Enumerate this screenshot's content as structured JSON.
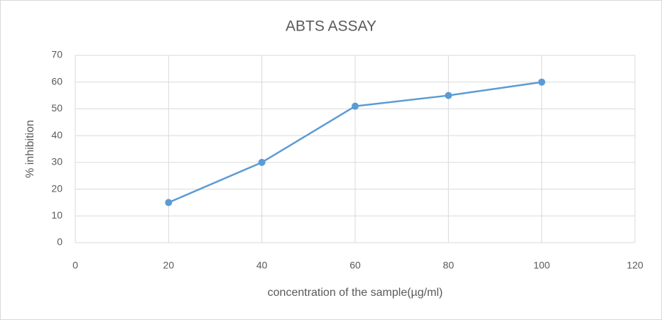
{
  "chart_data": {
    "type": "scatter-line",
    "title": "ABTS ASSAY",
    "x_label": "concentration of the sample(µg/ml)",
    "y_label": "% inhibition",
    "x": [
      20,
      40,
      60,
      80,
      100
    ],
    "series": [
      {
        "name": "% inhibition",
        "color": "#5b9bd5",
        "values": [
          15,
          30,
          51,
          55,
          60
        ]
      }
    ],
    "xlim": [
      0,
      120
    ],
    "xticks": [
      0,
      20,
      40,
      60,
      80,
      100,
      120
    ],
    "ylim": [
      0,
      70
    ],
    "yticks": [
      0,
      10,
      20,
      30,
      40,
      50,
      60,
      70
    ],
    "grid": true
  }
}
